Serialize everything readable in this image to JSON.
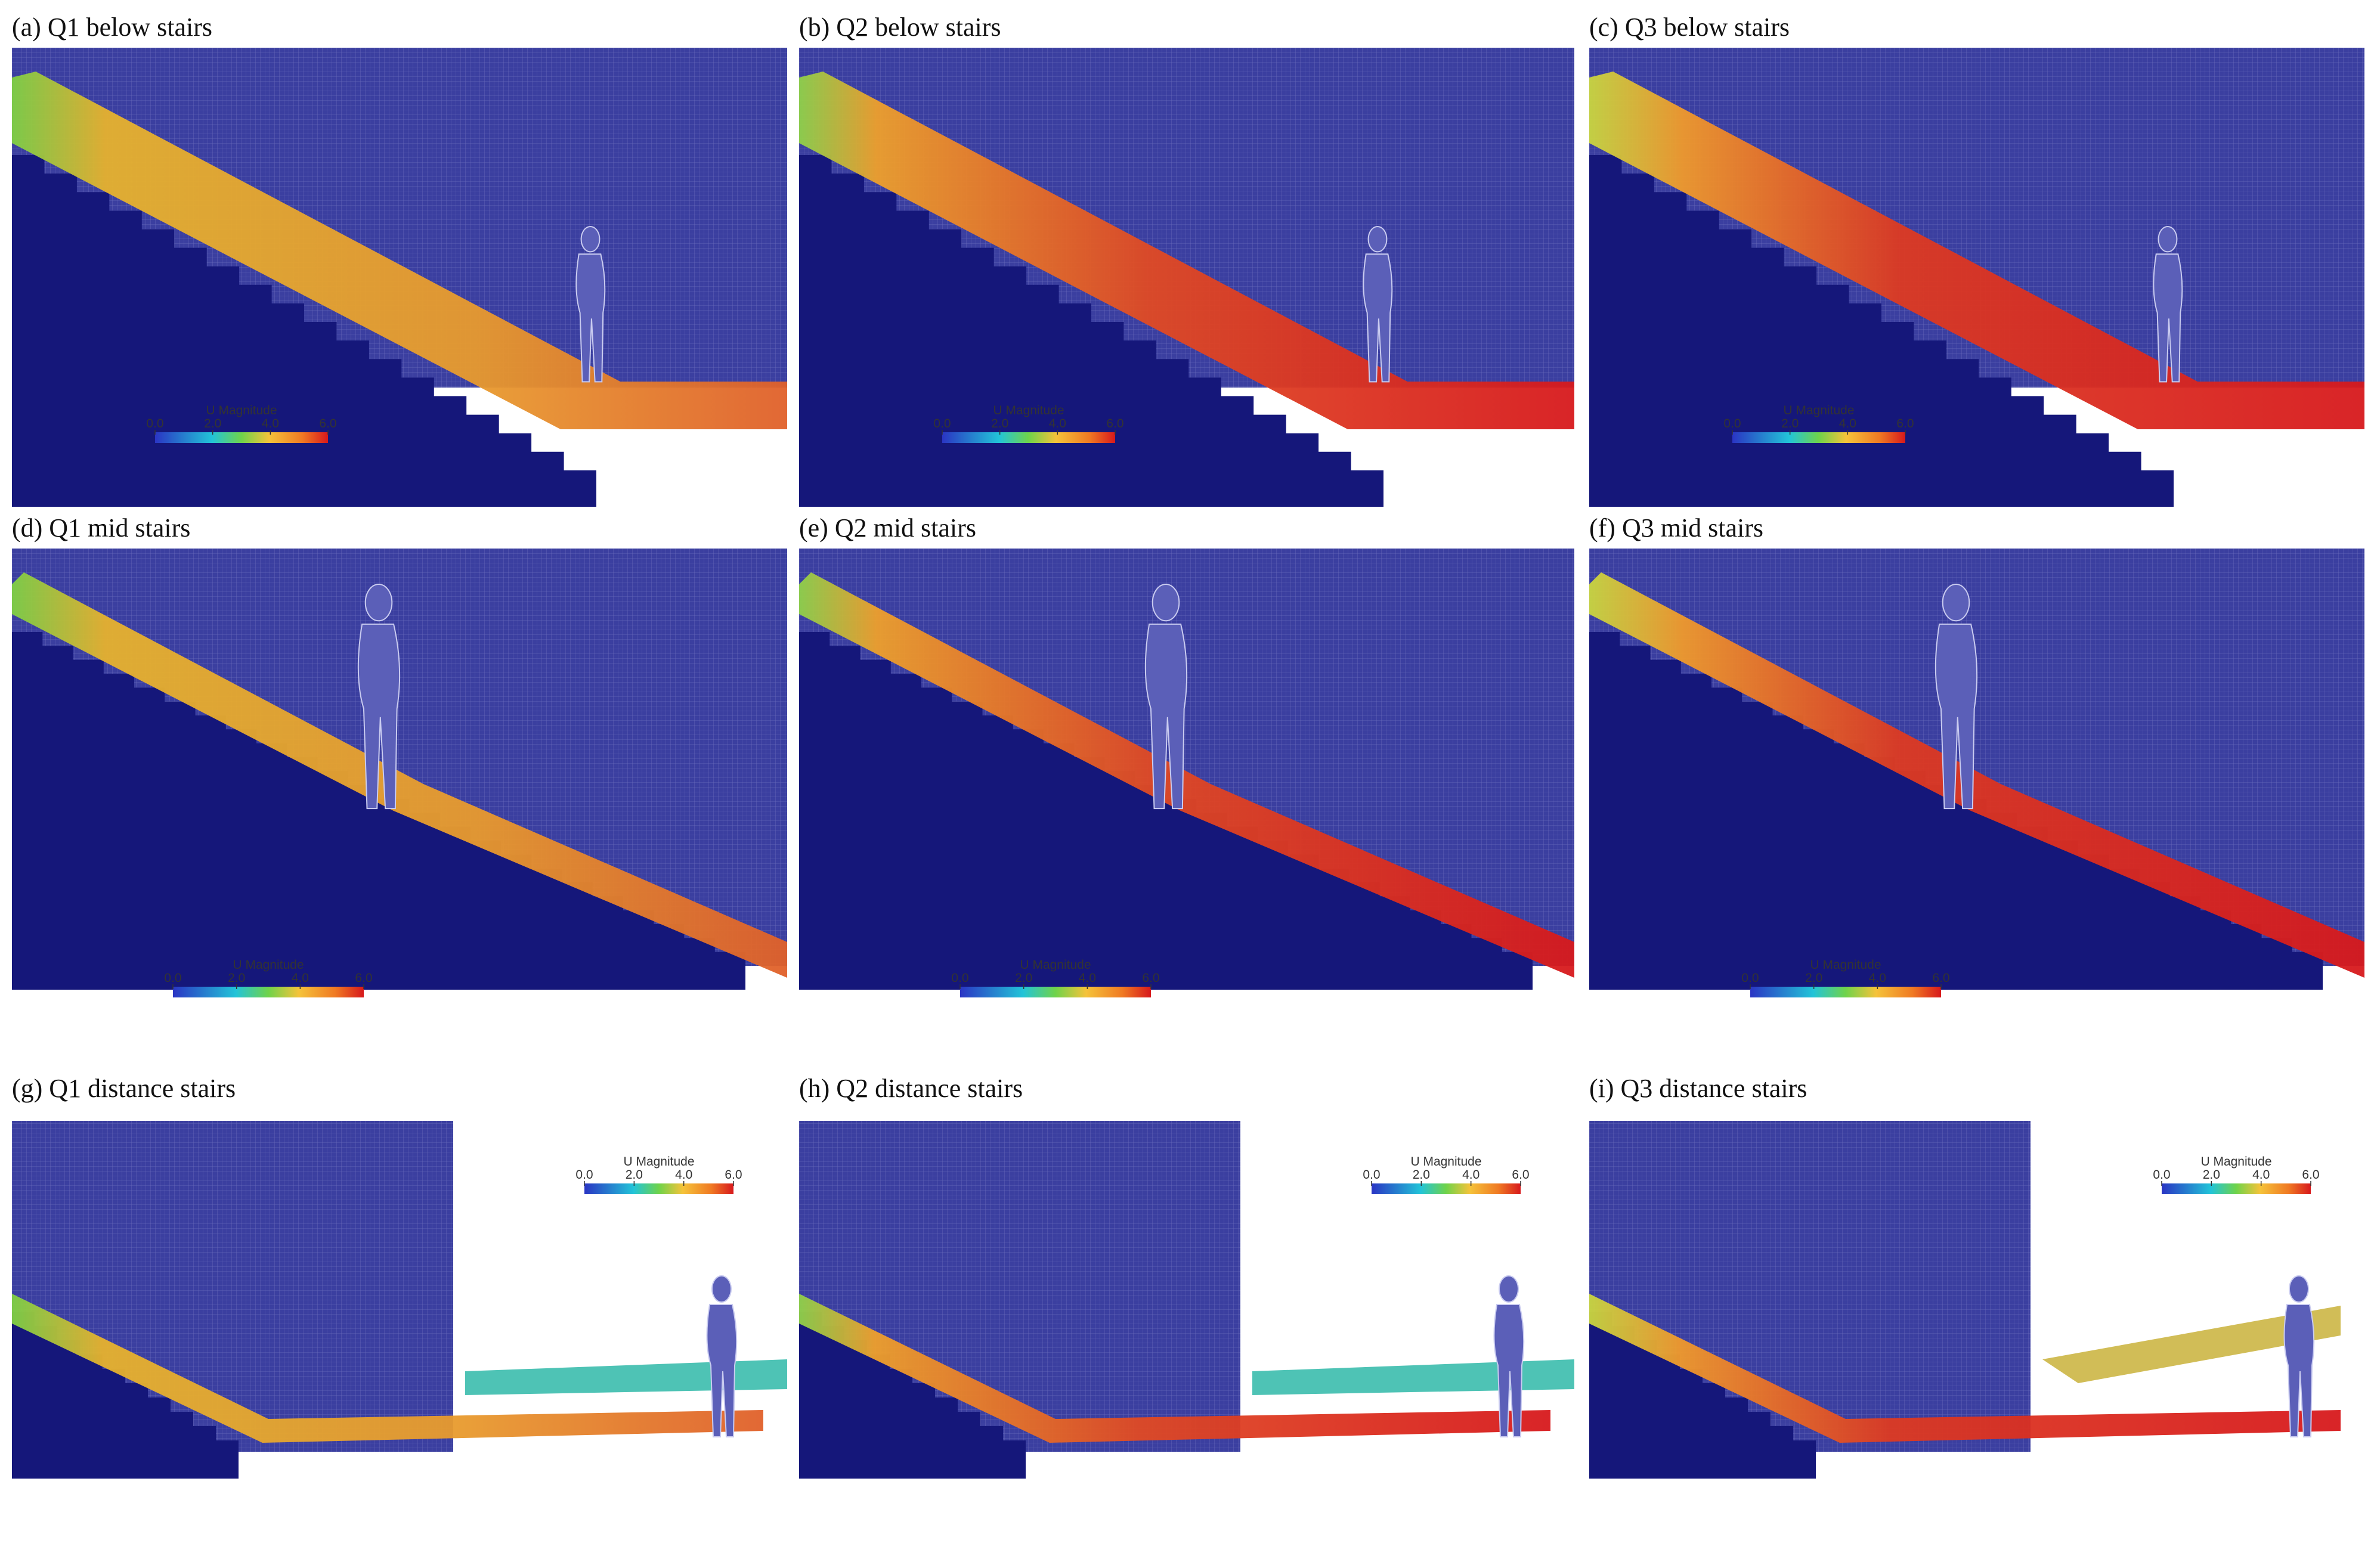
{
  "colors": {
    "background_mesh": "#3b3fa0",
    "stair_solid": "#15177a",
    "jet_low": "#2a35c4",
    "jet_mid": "#f5c33a",
    "jet_high": "#d7191c"
  },
  "colorbar": {
    "title": "U Magnitude",
    "ticks": [
      "0.0",
      "2.0",
      "4.0",
      "6.0"
    ],
    "scale": "jet"
  },
  "panels": [
    {
      "id": "a",
      "title": "(a) Q1 below stairs",
      "view": "below",
      "flow": "Q1"
    },
    {
      "id": "b",
      "title": "(b) Q2 below stairs",
      "view": "below",
      "flow": "Q2"
    },
    {
      "id": "c",
      "title": "(c) Q3 below stairs",
      "view": "below",
      "flow": "Q3"
    },
    {
      "id": "d",
      "title": "(d) Q1 mid stairs",
      "view": "mid",
      "flow": "Q1"
    },
    {
      "id": "e",
      "title": "(e) Q2 mid stairs",
      "view": "mid",
      "flow": "Q2"
    },
    {
      "id": "f",
      "title": "(f) Q3 mid stairs",
      "view": "mid",
      "flow": "Q3"
    },
    {
      "id": "g",
      "title": "(g) Q1 distance stairs",
      "view": "distance",
      "flow": "Q1"
    },
    {
      "id": "h",
      "title": "(h) Q2 distance stairs",
      "view": "distance",
      "flow": "Q2"
    },
    {
      "id": "i",
      "title": "(i) Q3 distance stairs",
      "view": "distance",
      "flow": "Q3"
    }
  ]
}
